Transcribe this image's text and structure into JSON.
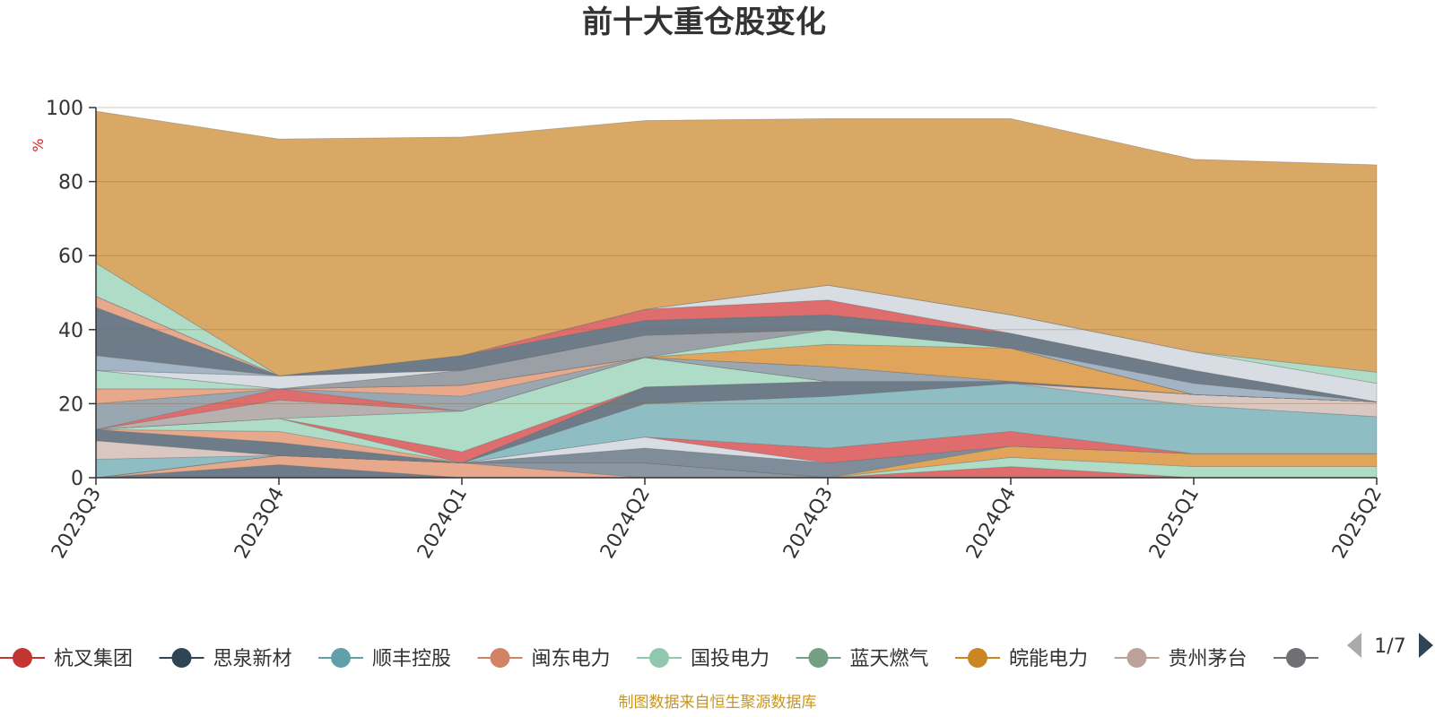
{
  "chart_data": {
    "type": "area",
    "stacked": true,
    "title": "前十大重仓股变化",
    "unit": "%",
    "ylim": [
      0,
      100
    ],
    "yticks": [
      0,
      20,
      40,
      60,
      80,
      100
    ],
    "categories": [
      "2023Q3",
      "2023Q4",
      "2024Q1",
      "2024Q2",
      "2024Q3",
      "2024Q4",
      "2025Q1",
      "2025Q2"
    ],
    "grid": true,
    "legend_position": "bottom",
    "series": [
      {
        "name": "",
        "color": "#6e7b88",
        "values": [
          0,
          3.5,
          0,
          0,
          0,
          0,
          0,
          0
        ]
      },
      {
        "name": "",
        "color": "#e8a88c",
        "values": [
          0,
          2.5,
          4,
          0,
          0,
          0,
          0,
          0
        ]
      },
      {
        "name": "",
        "color": "#8a96a2",
        "values": [
          0,
          0,
          0,
          4,
          0,
          0,
          0,
          0
        ]
      },
      {
        "name": "",
        "color": "#e06d6d",
        "values": [
          0,
          0,
          0,
          0,
          0,
          3,
          0,
          0
        ]
      },
      {
        "name": "",
        "color": "#aedcc6",
        "values": [
          0,
          0,
          0,
          0,
          0,
          2.5,
          3,
          3
        ]
      },
      {
        "name": "",
        "color": "#e0a55a",
        "values": [
          0,
          0,
          0,
          0,
          0,
          3,
          3.5,
          3.5
        ]
      },
      {
        "name": "",
        "color": "#7f8d9a",
        "values": [
          0,
          0,
          0,
          4,
          4,
          0,
          0,
          0
        ]
      },
      {
        "name": "",
        "color": "#d8dde4",
        "values": [
          0,
          0,
          0,
          3,
          0,
          0,
          0,
          0
        ]
      },
      {
        "name": "",
        "color": "#e06d6d",
        "values": [
          0,
          0,
          0,
          0,
          4,
          4,
          0,
          0
        ]
      },
      {
        "name": "",
        "color": "#8fbdc4",
        "values": [
          5,
          0,
          0,
          9,
          14,
          13,
          13,
          10
        ]
      },
      {
        "name": "",
        "color": "#d9c7c2",
        "values": [
          5,
          0,
          0,
          0,
          0,
          0,
          3,
          4
        ]
      },
      {
        "name": "",
        "color": "#6e7b88",
        "values": [
          3,
          3.5,
          0,
          4.5,
          4,
          0.5,
          0,
          0
        ]
      },
      {
        "name": "",
        "color": "#e8a88c",
        "values": [
          0,
          3,
          0,
          0,
          0,
          0,
          0,
          0
        ]
      },
      {
        "name": "",
        "color": "#aedcc6",
        "values": [
          0,
          3.5,
          0,
          0,
          0,
          0,
          0,
          0
        ]
      },
      {
        "name": "",
        "color": "#e06d6d",
        "values": [
          0,
          0,
          3,
          0,
          0,
          0,
          0,
          0
        ]
      },
      {
        "name": "",
        "color": "#aedcc6",
        "values": [
          0,
          0,
          11,
          8,
          0,
          0,
          0,
          0
        ]
      },
      {
        "name": "",
        "color": "#b8b0ae",
        "values": [
          0,
          5,
          0,
          0,
          0,
          0,
          0,
          0
        ]
      },
      {
        "name": "",
        "color": "#e06d6d",
        "values": [
          0,
          3,
          0,
          0,
          0,
          0,
          0,
          0
        ]
      },
      {
        "name": "",
        "color": "#9aa6b0",
        "values": [
          7,
          0,
          4,
          0,
          4,
          0,
          0,
          0
        ]
      },
      {
        "name": "",
        "color": "#e8a88c",
        "values": [
          4,
          0,
          3,
          0,
          0,
          0,
          0,
          0
        ]
      },
      {
        "name": "",
        "color": "#e0a55a",
        "values": [
          0,
          0,
          0,
          0,
          6,
          9,
          0,
          0
        ]
      },
      {
        "name": "",
        "color": "#aedcc6",
        "values": [
          5,
          0,
          0,
          0,
          4,
          0,
          0,
          0
        ]
      },
      {
        "name": "",
        "color": "#9aa0a6",
        "values": [
          0,
          0,
          4,
          6,
          0,
          0,
          0,
          0
        ]
      },
      {
        "name": "",
        "color": "#d8dde4",
        "values": [
          0,
          3.5,
          0,
          0,
          0,
          0,
          0,
          0
        ]
      },
      {
        "name": "",
        "color": "#a3b5c4",
        "values": [
          4,
          0,
          0,
          0,
          0,
          0,
          3,
          0
        ]
      },
      {
        "name": "",
        "color": "#6e7b88",
        "values": [
          13,
          0,
          4,
          4,
          4,
          4,
          3.5,
          0
        ]
      },
      {
        "name": "",
        "color": "#e8a88c",
        "values": [
          3,
          0,
          0,
          0,
          0,
          0,
          0,
          0
        ]
      },
      {
        "name": "",
        "color": "#e06d6d",
        "values": [
          0,
          0,
          0,
          3,
          4,
          0,
          0,
          0
        ]
      },
      {
        "name": "",
        "color": "#d8dde4",
        "values": [
          0,
          0,
          0,
          0,
          4,
          5,
          5,
          5
        ]
      },
      {
        "name": "",
        "color": "#aedcc6",
        "values": [
          9,
          0,
          0,
          0,
          0,
          0,
          0,
          3
        ]
      },
      {
        "name": "",
        "color": "#d9a865",
        "values": [
          41,
          64,
          59,
          51,
          45,
          53,
          52,
          56
        ]
      }
    ]
  },
  "legend": {
    "items": [
      {
        "label": "杭叉集团",
        "color": "#c23531"
      },
      {
        "label": "思泉新材",
        "color": "#2f4554"
      },
      {
        "label": "顺丰控股",
        "color": "#61a0a8"
      },
      {
        "label": "闽东电力",
        "color": "#d48265"
      },
      {
        "label": "国投电力",
        "color": "#91c7ae"
      },
      {
        "label": "蓝天燃气",
        "color": "#749f83"
      },
      {
        "label": "皖能电力",
        "color": "#ca8622"
      },
      {
        "label": "贵州茅台",
        "color": "#bda29a"
      },
      {
        "label": "",
        "color": "#6e7074"
      }
    ],
    "page": "1/7"
  },
  "source": "制图数据来自恒生聚源数据库"
}
